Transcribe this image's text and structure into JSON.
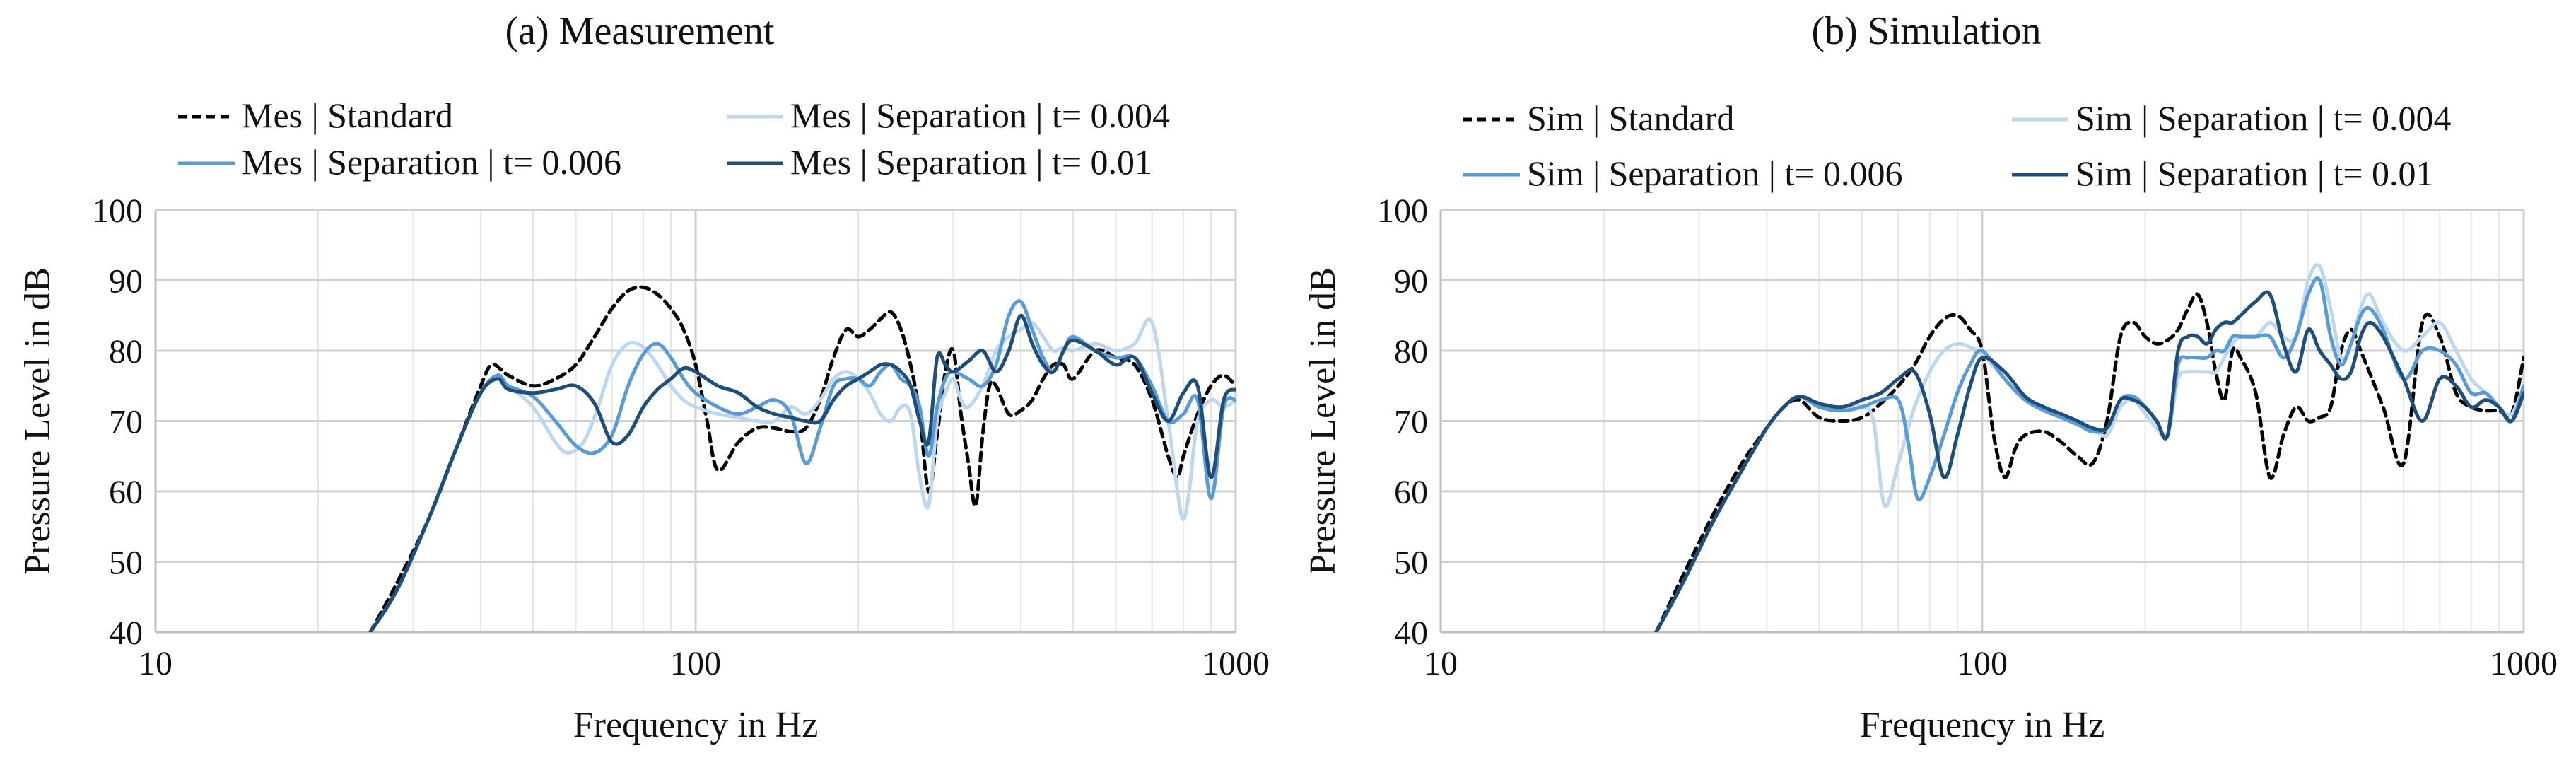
{
  "chart_data": [
    {
      "id": "measurement",
      "type": "line",
      "title": "(a) Measurement",
      "xlabel": "Frequency in Hz",
      "ylabel": "Pressure Level in dB",
      "xscale": "log",
      "xlim": [
        10,
        1000
      ],
      "ylim": [
        40,
        100
      ],
      "x_ticks": [
        "10",
        "100",
        "1000"
      ],
      "y_ticks": [
        "40",
        "50",
        "60",
        "70",
        "80",
        "90",
        "100"
      ],
      "grid": true,
      "legend": "top",
      "series": [
        {
          "name": "Mes | Standard",
          "color": "#000000",
          "dash": "dashed",
          "x": [
            25,
            28,
            32,
            36,
            40,
            42,
            45,
            50,
            55,
            60,
            65,
            70,
            75,
            80,
            85,
            90,
            95,
            100,
            105,
            110,
            120,
            130,
            140,
            150,
            160,
            170,
            180,
            190,
            200,
            210,
            220,
            230,
            240,
            250,
            260,
            270,
            280,
            290,
            300,
            310,
            320,
            330,
            340,
            350,
            360,
            380,
            400,
            420,
            440,
            460,
            480,
            500,
            550,
            600,
            650,
            700,
            750,
            780,
            800,
            850,
            900,
            950,
            1000
          ],
          "y": [
            40,
            47,
            56,
            66,
            75,
            78,
            76.5,
            75,
            76,
            78,
            82,
            86,
            88.5,
            89,
            88,
            86,
            83,
            78,
            70,
            63,
            67,
            69,
            69,
            68.5,
            69,
            73,
            79,
            83,
            82,
            83,
            84.5,
            85.5,
            83,
            78,
            71,
            60,
            68,
            77,
            80,
            71,
            64,
            58,
            68,
            75,
            75,
            71,
            71.5,
            73,
            76,
            78,
            78,
            76,
            80,
            79,
            78,
            73,
            65,
            62,
            65,
            71,
            75,
            76.5,
            75
          ]
        },
        {
          "name": "Mes | Separation | t= 0.004",
          "color": "#bdd7ee",
          "dash": "solid",
          "x": [
            25,
            28,
            32,
            36,
            40,
            43,
            45,
            50,
            55,
            58,
            62,
            66,
            70,
            75,
            80,
            85,
            90,
            95,
            100,
            110,
            120,
            130,
            140,
            150,
            160,
            170,
            180,
            190,
            200,
            210,
            220,
            230,
            240,
            250,
            260,
            270,
            280,
            290,
            300,
            310,
            320,
            340,
            360,
            380,
            400,
            420,
            440,
            460,
            480,
            500,
            550,
            600,
            650,
            700,
            750,
            780,
            800,
            820,
            850,
            900,
            950,
            1000
          ],
          "y": [
            40,
            46,
            56,
            66,
            74,
            76.5,
            75,
            72,
            67,
            65.5,
            67,
            72,
            78,
            81,
            80.5,
            78,
            75,
            73,
            72,
            71,
            70.5,
            70,
            70,
            72,
            71,
            73,
            76,
            77,
            76,
            74,
            71,
            70,
            72,
            71,
            62,
            58,
            70,
            74,
            76,
            73,
            72,
            75,
            80,
            82,
            83,
            84,
            82,
            80,
            80.5,
            80,
            81,
            80,
            81,
            84,
            70,
            60,
            56,
            60,
            70,
            73,
            72,
            73
          ]
        },
        {
          "name": "Mes | Separation | t= 0.006",
          "color": "#5b9bd5",
          "dash": "solid",
          "x": [
            25,
            28,
            32,
            36,
            40,
            43,
            45,
            50,
            55,
            60,
            65,
            70,
            75,
            80,
            85,
            90,
            95,
            100,
            110,
            120,
            130,
            140,
            150,
            160,
            170,
            180,
            190,
            200,
            210,
            220,
            230,
            240,
            250,
            260,
            270,
            280,
            290,
            300,
            320,
            340,
            360,
            380,
            400,
            420,
            440,
            460,
            480,
            500,
            550,
            600,
            650,
            700,
            750,
            800,
            850,
            900,
            950,
            1000
          ],
          "y": [
            40,
            46,
            56,
            66,
            74,
            76.5,
            75,
            73.5,
            70,
            66.5,
            65.5,
            68,
            75,
            79.5,
            81,
            79,
            76,
            74,
            72,
            71,
            72,
            73,
            71,
            64,
            69,
            75,
            76,
            76,
            75,
            77,
            78,
            76,
            75,
            72,
            65,
            72,
            76,
            77,
            76,
            75,
            78,
            85,
            87,
            83,
            79,
            77,
            80,
            82,
            80,
            79,
            79,
            75,
            70,
            71,
            73,
            59,
            72,
            73
          ]
        },
        {
          "name": "Mes | Separation | t= 0.01",
          "color": "#1f4e79",
          "dash": "solid",
          "x": [
            25,
            28,
            32,
            36,
            40,
            43,
            45,
            50,
            55,
            60,
            65,
            70,
            75,
            80,
            85,
            90,
            95,
            100,
            110,
            120,
            130,
            140,
            150,
            160,
            170,
            180,
            190,
            200,
            210,
            220,
            230,
            240,
            250,
            260,
            270,
            280,
            290,
            300,
            320,
            340,
            360,
            380,
            400,
            420,
            440,
            460,
            480,
            500,
            550,
            600,
            650,
            700,
            750,
            800,
            850,
            900,
            950,
            1000
          ],
          "y": [
            40,
            46,
            56,
            66,
            74,
            76,
            74.5,
            74,
            74.5,
            75,
            72.5,
            67,
            68,
            72,
            74.5,
            76,
            77.5,
            77,
            75,
            74,
            72,
            71,
            70.5,
            70,
            70,
            73,
            75,
            76,
            77,
            78,
            78,
            77,
            75,
            70,
            67,
            79,
            78,
            77,
            78.5,
            80,
            77,
            80,
            85,
            81,
            78,
            77,
            80,
            81.5,
            80,
            78,
            79,
            74,
            70,
            74,
            75,
            62,
            73,
            74.5
          ]
        }
      ]
    },
    {
      "id": "simulation",
      "type": "line",
      "title": "(b) Simulation",
      "xlabel": "Frequency in Hz",
      "ylabel": "Pressure Level in dB",
      "xscale": "log",
      "xlim": [
        10,
        1000
      ],
      "ylim": [
        40,
        100
      ],
      "x_ticks": [
        "10",
        "100",
        "1000"
      ],
      "y_ticks": [
        "40",
        "50",
        "60",
        "70",
        "80",
        "90",
        "100"
      ],
      "grid": true,
      "legend": "top",
      "series": [
        {
          "name": "Sim | Standard",
          "color": "#000000",
          "dash": "dashed",
          "x": [
            25,
            28,
            32,
            36,
            40,
            43,
            46,
            50,
            55,
            60,
            65,
            70,
            75,
            80,
            85,
            90,
            95,
            100,
            105,
            110,
            115,
            120,
            130,
            140,
            150,
            160,
            170,
            180,
            190,
            200,
            210,
            220,
            230,
            240,
            250,
            260,
            270,
            280,
            290,
            300,
            320,
            340,
            360,
            380,
            400,
            420,
            440,
            460,
            480,
            500,
            550,
            600,
            650,
            700,
            750,
            800,
            850,
            900,
            950,
            1000
          ],
          "y": [
            40,
            48,
            57,
            64,
            69,
            72,
            73,
            70.5,
            70,
            70.5,
            72.5,
            75,
            78,
            82,
            84.5,
            85,
            83,
            80,
            68,
            62,
            66,
            68,
            68.5,
            67,
            65,
            64,
            70,
            82,
            84,
            82,
            81,
            81.5,
            83,
            86,
            88,
            84,
            77,
            73,
            80,
            79,
            74,
            62,
            68,
            72,
            70,
            70.5,
            72,
            80,
            83,
            80,
            72,
            64,
            84,
            82,
            74,
            72,
            71.5,
            71.5,
            71,
            79
          ]
        },
        {
          "name": "Sim | Separation | t= 0.004",
          "color": "#bdd7ee",
          "dash": "solid",
          "x": [
            25,
            28,
            32,
            36,
            40,
            43,
            46,
            50,
            55,
            60,
            63,
            66,
            70,
            75,
            80,
            85,
            90,
            95,
            100,
            110,
            120,
            130,
            140,
            150,
            160,
            170,
            180,
            190,
            200,
            210,
            220,
            230,
            240,
            250,
            260,
            270,
            280,
            290,
            300,
            320,
            340,
            360,
            380,
            400,
            420,
            440,
            460,
            480,
            500,
            520,
            550,
            600,
            650,
            700,
            750,
            800,
            850,
            900,
            950,
            1000
          ],
          "y": [
            40,
            47,
            56,
            63,
            69,
            72,
            73.5,
            72,
            72,
            72,
            70,
            58,
            64,
            72,
            77,
            80,
            81,
            80.5,
            79.5,
            76,
            73,
            72,
            71,
            70,
            69,
            68,
            72,
            73,
            71,
            69,
            68,
            76,
            77,
            77,
            77,
            77,
            79,
            81,
            82,
            82,
            84,
            82,
            82,
            90,
            92,
            86,
            79,
            81,
            86,
            88,
            84,
            80,
            82,
            84,
            80,
            76,
            74,
            72,
            71,
            75
          ]
        },
        {
          "name": "Sim | Separation | t= 0.006",
          "color": "#5b9bd5",
          "dash": "solid",
          "x": [
            25,
            28,
            32,
            36,
            40,
            43,
            46,
            50,
            55,
            60,
            65,
            70,
            73,
            76,
            80,
            85,
            90,
            95,
            100,
            110,
            120,
            130,
            140,
            150,
            160,
            170,
            180,
            190,
            200,
            210,
            220,
            230,
            240,
            250,
            260,
            270,
            280,
            290,
            300,
            320,
            340,
            360,
            380,
            400,
            420,
            440,
            460,
            480,
            500,
            520,
            550,
            600,
            650,
            700,
            750,
            800,
            850,
            900,
            950,
            1000
          ],
          "y": [
            40,
            47,
            56,
            63,
            69,
            72,
            73.5,
            72,
            71.5,
            72,
            73,
            73,
            67,
            59,
            62,
            68,
            74,
            78,
            80,
            76,
            73,
            71.5,
            70.5,
            69.5,
            68.5,
            69,
            73,
            73.5,
            72,
            70,
            68,
            78,
            79,
            79,
            79,
            80,
            80,
            82,
            82,
            82,
            82,
            79,
            82,
            88,
            90,
            82,
            78,
            81,
            85,
            86,
            83,
            76,
            80,
            80,
            78,
            74,
            74,
            72,
            70,
            75
          ]
        },
        {
          "name": "Sim | Separation | t= 0.01",
          "color": "#1f4e79",
          "dash": "solid",
          "x": [
            25,
            28,
            32,
            36,
            40,
            43,
            46,
            50,
            55,
            60,
            65,
            70,
            75,
            80,
            85,
            90,
            95,
            100,
            110,
            120,
            130,
            140,
            150,
            160,
            170,
            180,
            190,
            200,
            210,
            220,
            230,
            240,
            250,
            260,
            270,
            280,
            290,
            300,
            320,
            340,
            360,
            380,
            400,
            420,
            440,
            460,
            480,
            500,
            520,
            550,
            600,
            650,
            700,
            750,
            800,
            850,
            900,
            950,
            1000
          ],
          "y": [
            40,
            47,
            56,
            63,
            69,
            72,
            73.5,
            72.5,
            72,
            73,
            74,
            76,
            77,
            71,
            62,
            68,
            75,
            79,
            77,
            73.5,
            72,
            71,
            70,
            69,
            69,
            73,
            73,
            72,
            70,
            68,
            80,
            82,
            82,
            81,
            83,
            84,
            84,
            85,
            87,
            88,
            81,
            77,
            83,
            80,
            78,
            76,
            77,
            82,
            84,
            82,
            76,
            70,
            76,
            75,
            72,
            73,
            72,
            70,
            74
          ]
        }
      ]
    }
  ]
}
